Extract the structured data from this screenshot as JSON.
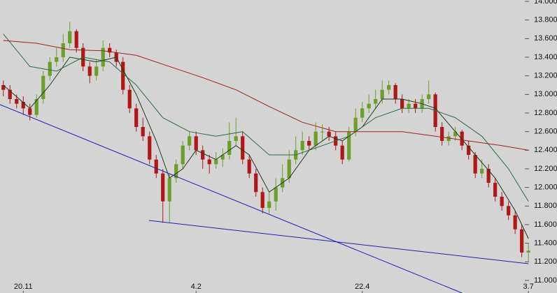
{
  "chart_data": {
    "type": "candlestick",
    "up_color": "#6e9e2a",
    "down_color": "#b01818",
    "xlim": [
      -0.5,
      83.3
    ],
    "xticks": [
      {
        "value": 3,
        "label": "20.11"
      },
      {
        "value": 29,
        "label": "4.2"
      },
      {
        "value": 54,
        "label": "22.4"
      },
      {
        "value": 79,
        "label": "3.7"
      }
    ],
    "ylim": [
      10.865,
      14.015
    ],
    "yticks": [
      {
        "value": 11,
        "label": "11.000"
      },
      {
        "value": 11.2,
        "label": "11.200"
      },
      {
        "value": 11.4,
        "label": "11.400"
      },
      {
        "value": 11.6,
        "label": "11.600"
      },
      {
        "value": 11.8,
        "label": "11.800"
      },
      {
        "value": 12,
        "label": "12.000"
      },
      {
        "value": 12.2,
        "label": "12.200"
      },
      {
        "value": 12.4,
        "label": "12.400"
      },
      {
        "value": 12.6,
        "label": "12.600"
      },
      {
        "value": 12.8,
        "label": "12.800"
      },
      {
        "value": 13,
        "label": "13.000"
      },
      {
        "value": 13.2,
        "label": "13.200"
      },
      {
        "value": 13.4,
        "label": "13.400"
      },
      {
        "value": 13.6,
        "label": "13.600"
      },
      {
        "value": 13.8,
        "label": "13.800"
      },
      {
        "value": 14,
        "label": "14.000"
      }
    ],
    "ohlc": [
      [
        13.1,
        13.15,
        12.98,
        13.05
      ],
      [
        13.05,
        13.1,
        12.9,
        12.95
      ],
      [
        12.95,
        13.0,
        12.85,
        12.9
      ],
      [
        12.92,
        12.98,
        12.78,
        12.85
      ],
      [
        12.85,
        12.9,
        12.72,
        12.78
      ],
      [
        12.78,
        13.0,
        12.75,
        12.95
      ],
      [
        12.95,
        13.25,
        12.9,
        13.2
      ],
      [
        13.2,
        13.4,
        13.15,
        13.35
      ],
      [
        13.35,
        13.5,
        13.3,
        13.4
      ],
      [
        13.4,
        13.65,
        13.35,
        13.55
      ],
      [
        13.55,
        13.78,
        13.5,
        13.68
      ],
      [
        13.68,
        13.7,
        13.45,
        13.5
      ],
      [
        13.5,
        13.55,
        13.25,
        13.3
      ],
      [
        13.3,
        13.35,
        13.12,
        13.2
      ],
      [
        13.2,
        13.38,
        13.15,
        13.3
      ],
      [
        13.3,
        13.58,
        13.25,
        13.5
      ],
      [
        13.5,
        13.55,
        13.4,
        13.45
      ],
      [
        13.45,
        13.48,
        13.3,
        13.35
      ],
      [
        13.35,
        13.4,
        13.0,
        13.05
      ],
      [
        13.05,
        13.1,
        12.8,
        12.85
      ],
      [
        12.85,
        12.9,
        12.6,
        12.65
      ],
      [
        12.65,
        12.75,
        12.5,
        12.55
      ],
      [
        12.55,
        12.6,
        12.25,
        12.3
      ],
      [
        12.3,
        12.35,
        12.1,
        12.15
      ],
      [
        12.15,
        12.2,
        11.62,
        11.85
      ],
      [
        11.85,
        12.15,
        11.62,
        12.1
      ],
      [
        12.1,
        12.3,
        12.05,
        12.25
      ],
      [
        12.25,
        12.5,
        12.2,
        12.45
      ],
      [
        12.45,
        12.6,
        12.4,
        12.55
      ],
      [
        12.55,
        12.6,
        12.35,
        12.4
      ],
      [
        12.4,
        12.45,
        12.2,
        12.3
      ],
      [
        12.3,
        12.35,
        12.15,
        12.25
      ],
      [
        12.25,
        12.38,
        12.2,
        12.3
      ],
      [
        12.3,
        12.42,
        12.22,
        12.35
      ],
      [
        12.35,
        12.7,
        12.3,
        12.5
      ],
      [
        12.5,
        12.75,
        12.45,
        12.55
      ],
      [
        12.55,
        12.6,
        12.25,
        12.3
      ],
      [
        12.3,
        12.35,
        12.1,
        12.15
      ],
      [
        12.15,
        12.2,
        11.9,
        11.95
      ],
      [
        11.95,
        12.0,
        11.72,
        11.78
      ],
      [
        11.78,
        11.95,
        11.72,
        11.85
      ],
      [
        11.85,
        12.1,
        11.75,
        12.0
      ],
      [
        12.0,
        12.25,
        11.95,
        12.1
      ],
      [
        12.1,
        12.4,
        12.05,
        12.3
      ],
      [
        12.3,
        12.55,
        12.25,
        12.4
      ],
      [
        12.4,
        12.6,
        12.35,
        12.5
      ],
      [
        12.5,
        12.55,
        12.4,
        12.45
      ],
      [
        12.45,
        12.7,
        12.4,
        12.6
      ],
      [
        12.6,
        12.68,
        12.5,
        12.6
      ],
      [
        12.6,
        12.65,
        12.5,
        12.55
      ],
      [
        12.55,
        12.6,
        12.4,
        12.45
      ],
      [
        12.45,
        12.5,
        12.25,
        12.3
      ],
      [
        12.3,
        12.65,
        12.28,
        12.6
      ],
      [
        12.6,
        12.85,
        12.55,
        12.75
      ],
      [
        12.75,
        12.92,
        12.7,
        12.85
      ],
      [
        12.85,
        13.0,
        12.8,
        12.9
      ],
      [
        12.9,
        13.05,
        12.85,
        12.95
      ],
      [
        12.95,
        13.15,
        12.9,
        13.05
      ],
      [
        13.05,
        13.15,
        13.0,
        13.1
      ],
      [
        13.1,
        13.12,
        12.9,
        12.95
      ],
      [
        12.95,
        13.0,
        12.8,
        12.85
      ],
      [
        12.85,
        12.95,
        12.8,
        12.9
      ],
      [
        12.9,
        12.95,
        12.8,
        12.85
      ],
      [
        12.85,
        13.0,
        12.8,
        12.95
      ],
      [
        12.95,
        13.15,
        12.9,
        13.0
      ],
      [
        13.0,
        13.02,
        12.6,
        12.65
      ],
      [
        12.65,
        12.7,
        12.45,
        12.5
      ],
      [
        12.5,
        12.6,
        12.45,
        12.55
      ],
      [
        12.55,
        12.65,
        12.5,
        12.6
      ],
      [
        12.6,
        12.62,
        12.4,
        12.45
      ],
      [
        12.45,
        12.5,
        12.3,
        12.35
      ],
      [
        12.35,
        12.38,
        12.1,
        12.15
      ],
      [
        12.15,
        12.3,
        12.1,
        12.2
      ],
      [
        12.2,
        12.25,
        12.0,
        12.05
      ],
      [
        12.05,
        12.1,
        11.85,
        11.9
      ],
      [
        11.9,
        11.95,
        11.75,
        11.8
      ],
      [
        11.8,
        11.85,
        11.65,
        11.7
      ],
      [
        11.7,
        11.75,
        11.5,
        11.55
      ],
      [
        11.55,
        11.6,
        11.25,
        11.3
      ],
      [
        11.3,
        11.4,
        11.2,
        11.32
      ]
    ],
    "lines": [
      {
        "color": "#1d3b1d",
        "x": [
          0,
          4,
          7,
          10,
          14,
          17,
          20,
          23,
          25,
          27,
          29,
          32,
          35,
          37,
          40,
          43,
          46,
          49,
          51,
          54,
          57,
          60,
          63,
          65,
          68,
          71,
          74,
          77,
          79
        ],
        "values": [
          13.1,
          12.85,
          13.1,
          13.4,
          13.35,
          13.4,
          13.0,
          12.5,
          12.1,
          12.2,
          12.4,
          12.3,
          12.45,
          12.35,
          11.95,
          12.1,
          12.4,
          12.55,
          12.5,
          12.65,
          12.95,
          12.95,
          12.9,
          12.85,
          12.6,
          12.35,
          12.1,
          11.75,
          11.45
        ]
      },
      {
        "color": "#2e6b44",
        "x": [
          0,
          4,
          8,
          12,
          16,
          20,
          24,
          28,
          32,
          36,
          40,
          44,
          48,
          52,
          56,
          60,
          64,
          68,
          72,
          76,
          79
        ],
        "values": [
          13.65,
          13.3,
          13.25,
          13.4,
          13.35,
          13.1,
          12.75,
          12.6,
          12.55,
          12.6,
          12.35,
          12.35,
          12.45,
          12.55,
          12.75,
          12.85,
          12.85,
          12.75,
          12.55,
          12.2,
          11.85
        ]
      },
      {
        "color": "#a02020",
        "x": [
          0,
          5,
          10,
          15,
          20,
          25,
          30,
          35,
          40,
          45,
          50,
          55,
          60,
          65,
          70,
          75,
          79
        ],
        "values": [
          13.58,
          13.55,
          13.48,
          13.47,
          13.42,
          13.3,
          13.18,
          13.05,
          12.87,
          12.7,
          12.6,
          12.6,
          12.6,
          12.55,
          12.5,
          12.45,
          12.4
        ]
      },
      {
        "color": "#2020b0",
        "x": [
          -0.5,
          69
        ],
        "values": [
          12.89,
          10.865
        ]
      },
      {
        "color": "#2020b0",
        "x": [
          21.9,
          79
        ],
        "values": [
          11.645,
          11.18
        ]
      }
    ]
  }
}
